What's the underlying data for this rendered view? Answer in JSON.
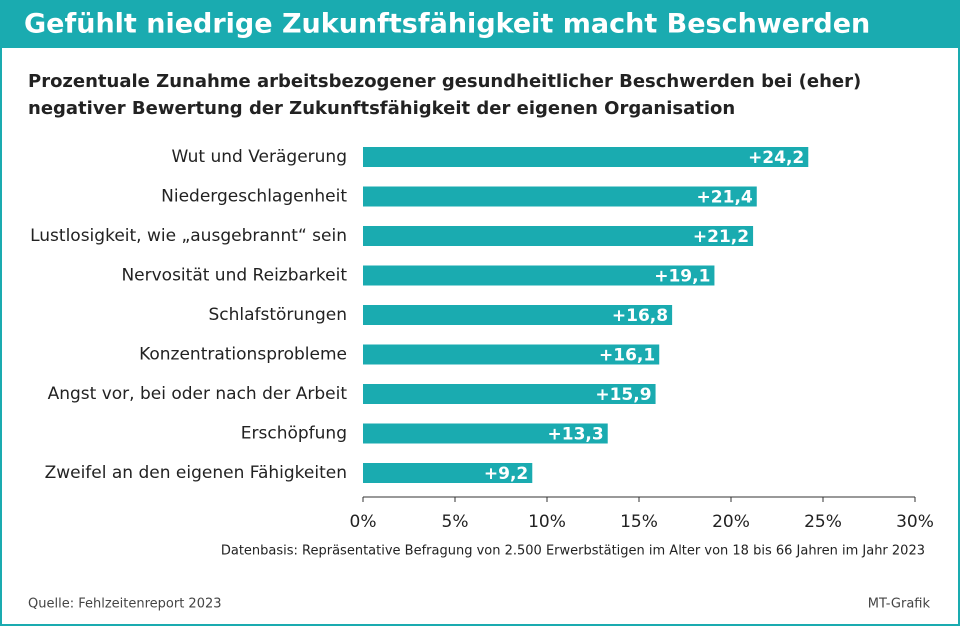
{
  "chart_data": {
    "type": "bar",
    "orientation": "horizontal",
    "title": "Gefühlt niedrige Zukunftsfähigkeit macht Beschwerden",
    "subtitle": [
      "Prozentuale Zunahme arbeitsbezogener gesundheitlicher Beschwerden bei (eher)",
      "negativer Bewertung der Zukunftsfähigkeit der eigenen Organisation"
    ],
    "categories": [
      "Wut und Verägerung",
      "Niedergeschlagenheit",
      "Lustlosigkeit, wie „ausgebrannt“ sein",
      "Nervosität und Reizbarkeit",
      "Schlafstörungen",
      "Konzentrationsprobleme",
      "Angst vor, bei oder nach der Arbeit",
      "Erschöpfung",
      "Zweifel an den eigenen Fähigkeiten"
    ],
    "values": [
      24.2,
      21.4,
      21.2,
      19.1,
      16.8,
      16.1,
      15.9,
      13.3,
      9.2
    ],
    "value_labels": [
      "+24,2",
      "+21,4",
      "+21,2",
      "+19,1",
      "+16,8",
      "+16,1",
      "+15,9",
      "+13,3",
      "+9,2"
    ],
    "color": "#1aabb0",
    "xlim": [
      0,
      30
    ],
    "xticks": [
      {
        "value": 0,
        "label": "0%"
      },
      {
        "value": 5,
        "label": "5%"
      },
      {
        "value": 10,
        "label": "10%"
      },
      {
        "value": 15,
        "label": "15%"
      },
      {
        "value": 20,
        "label": "20%"
      },
      {
        "value": 25,
        "label": "25%"
      },
      {
        "value": 30,
        "label": "30%"
      }
    ],
    "note": "Datenbasis: Repräsentative Befragung von 2.500 Erwerbstätigen im Alter von 18 bis 66 Jahren im Jahr 2023",
    "source": "Quelle: Fehlzeitenreport 2023",
    "credit": "MT-Grafik"
  }
}
